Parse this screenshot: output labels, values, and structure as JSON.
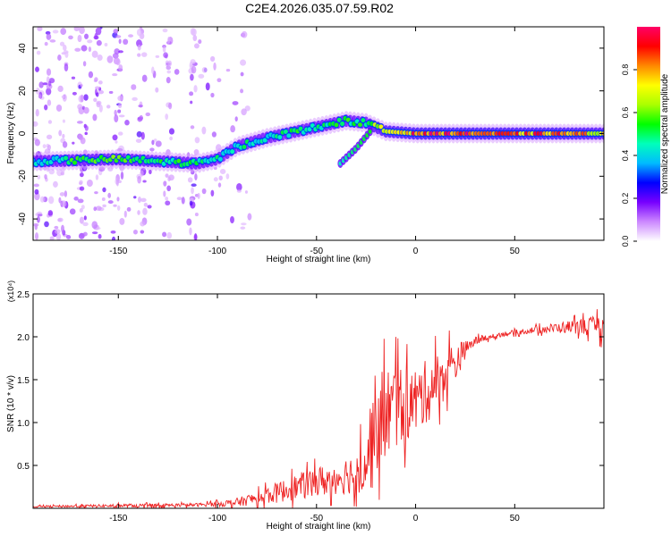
{
  "figure": {
    "title": "C2E4.2026.035.07.59.R02"
  },
  "chart_data": [
    {
      "type": "heatmap",
      "name": "spectrogram",
      "xlabel": "Height of straight line (km)",
      "ylabel": "Frequency (Hz)",
      "xlim": [
        -193,
        95
      ],
      "ylim": [
        -50,
        50
      ],
      "xticks": [
        -150,
        -100,
        -50,
        0,
        50
      ],
      "yticks": [
        -40,
        -20,
        0,
        20,
        40
      ],
      "colorbar": {
        "label": "Normalized spectral amplitude",
        "range": [
          0,
          1
        ],
        "ticks": [
          0.0,
          0.2,
          0.4,
          0.6,
          0.8
        ],
        "colors": [
          "#ffffff",
          "#cc88ff",
          "#7700ff",
          "#0000ff",
          "#00bbff",
          "#00ffbb",
          "#00ff00",
          "#aaff00",
          "#ffff00",
          "#ff8800",
          "#ff0000",
          "#ff0066"
        ]
      },
      "ridge": [
        {
          "x": -190,
          "f": -13,
          "a": 0.4
        },
        {
          "x": -170,
          "f": -12.5,
          "a": 0.55
        },
        {
          "x": -150,
          "f": -12,
          "a": 0.55
        },
        {
          "x": -130,
          "f": -13,
          "a": 0.5
        },
        {
          "x": -110,
          "f": -14,
          "a": 0.5
        },
        {
          "x": -100,
          "f": -12,
          "a": 0.45
        },
        {
          "x": -90,
          "f": -6,
          "a": 0.45
        },
        {
          "x": -75,
          "f": -2,
          "a": 0.45
        },
        {
          "x": -60,
          "f": 1,
          "a": 0.5
        },
        {
          "x": -45,
          "f": 4,
          "a": 0.5
        },
        {
          "x": -35,
          "f": 6,
          "a": 0.5
        },
        {
          "x": -25,
          "f": 5,
          "a": 0.55
        },
        {
          "x": -15,
          "f": 1,
          "a": 0.7
        },
        {
          "x": 0,
          "f": 0,
          "a": 0.85
        },
        {
          "x": 20,
          "f": 0,
          "a": 0.9
        },
        {
          "x": 50,
          "f": 0,
          "a": 0.8
        },
        {
          "x": 70,
          "f": 0,
          "a": 0.85
        },
        {
          "x": 95,
          "f": 0,
          "a": 0.7
        }
      ],
      "branch": [
        {
          "x": -38,
          "f": -14,
          "a": 0.45
        },
        {
          "x": -30,
          "f": -7,
          "a": 0.5
        },
        {
          "x": -22,
          "f": 2,
          "a": 0.55
        }
      ]
    },
    {
      "type": "line",
      "name": "snr",
      "xlabel": "Height of straight line (km)",
      "ylabel": "SNR (10 * v/v)",
      "multiplier": "(x10⁴)",
      "xlim": [
        -193,
        95
      ],
      "ylim": [
        0,
        2.5
      ],
      "xticks": [
        -150,
        -100,
        -50,
        0,
        50
      ],
      "yticks": [
        0.5,
        1.0,
        1.5,
        2.0,
        2.5
      ],
      "color": "#ee2222",
      "envelope": {
        "x": [
          -193,
          -150,
          -110,
          -100,
          -90,
          -80,
          -70,
          -60,
          -50,
          -40,
          -30,
          -25,
          -22,
          -20,
          -15,
          -10,
          -5,
          0,
          10,
          20,
          25,
          30,
          40,
          50,
          60,
          70,
          80,
          90,
          95
        ],
        "mean": [
          0.02,
          0.03,
          0.04,
          0.05,
          0.07,
          0.12,
          0.18,
          0.25,
          0.3,
          0.36,
          0.42,
          0.55,
          0.8,
          1.0,
          1.1,
          1.2,
          1.2,
          1.25,
          1.45,
          1.7,
          1.85,
          1.95,
          2.02,
          2.05,
          2.08,
          2.1,
          2.12,
          2.12,
          2.1
        ],
        "spread": [
          0.01,
          0.02,
          0.02,
          0.03,
          0.05,
          0.08,
          0.12,
          0.15,
          0.18,
          0.2,
          0.25,
          0.4,
          0.6,
          0.6,
          0.55,
          0.5,
          0.45,
          0.4,
          0.35,
          0.25,
          0.1,
          0.05,
          0.03,
          0.03,
          0.04,
          0.06,
          0.08,
          0.12,
          0.15
        ]
      }
    }
  ]
}
